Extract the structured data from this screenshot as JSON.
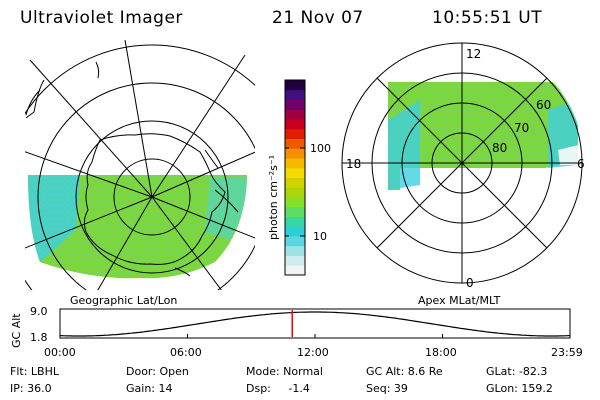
{
  "header": {
    "instrument": "Ultraviolet Imager",
    "date": "21 Nov 07",
    "time": "10:55:51 UT"
  },
  "geo_panel": {
    "caption": "Geographic Lat/Lon"
  },
  "mag_panel": {
    "caption": "Apex MLat/MLT",
    "mlt_labels": {
      "top": "12",
      "bottom": "0",
      "left": "18",
      "right": "6"
    },
    "lat_labels": [
      "80",
      "70",
      "60"
    ]
  },
  "colorbar": {
    "unit_label": "photon cm⁻²s⁻¹",
    "tick_labels": [
      "100",
      "10"
    ],
    "colors": [
      "#f2f2f2",
      "#d0ecee",
      "#9fe3e6",
      "#5cd7e0",
      "#2ccfd6",
      "#39d7a0",
      "#5fdc62",
      "#86df2b",
      "#acd40c",
      "#cfd400",
      "#f3db00",
      "#f6b800",
      "#f49000",
      "#ee5a00",
      "#e21e00",
      "#c80020",
      "#a00040",
      "#70006a",
      "#401080",
      "#200040"
    ]
  },
  "altitude_plot": {
    "ylabel": "GC Alt",
    "ytick_top": "9.0",
    "ytick_bottom": "1.8",
    "x_ticks": [
      "00:00",
      "06:00",
      "12:00",
      "18:00",
      "23:59"
    ],
    "current_time_fraction": 0.4554,
    "marker_color": "#ff0000"
  },
  "status": {
    "flt": "Flt: LBHL",
    "ip": "IP: 36.0",
    "door": "Door: Open",
    "gain": "Gain: 14",
    "mode": "Mode: Normal",
    "dsp": "Dsp:     -1.4",
    "gc_alt": "GC Alt: 8.6 Re",
    "seq": "Seq: 39",
    "glat": "GLat: -82.3",
    "glon": "GLon: 159.2"
  }
}
